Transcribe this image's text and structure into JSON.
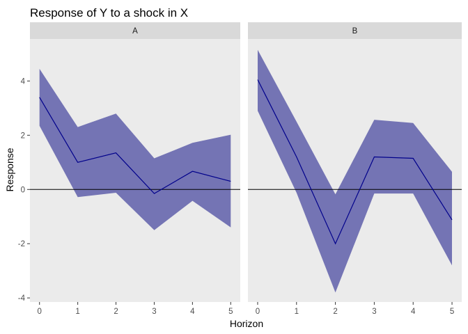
{
  "chart_data": {
    "type": "area",
    "title": "Response of Y to a shock in X",
    "xlabel": "Horizon",
    "ylabel": "Response",
    "x": [
      0,
      1,
      2,
      3,
      4,
      5
    ],
    "xlim": [
      -0.25,
      5.25
    ],
    "ylim": [
      -4.15,
      5.55
    ],
    "xticks": [
      0,
      1,
      2,
      3,
      4,
      5
    ],
    "yticks": [
      -4,
      -2,
      0,
      2,
      4
    ],
    "hline": 0,
    "grid": false,
    "panel_background": "#EBEBEB",
    "strip_background": "#D9D9D9",
    "band_color": "#7474B4",
    "line_color": "#00008B",
    "panels": [
      {
        "name": "A",
        "response": [
          3.4,
          1.0,
          1.35,
          -0.15,
          0.67,
          0.3
        ],
        "lower": [
          2.35,
          -0.28,
          -0.12,
          -1.5,
          -0.42,
          -1.4
        ],
        "upper": [
          4.45,
          2.3,
          2.8,
          1.15,
          1.72,
          2.02
        ]
      },
      {
        "name": "B",
        "response": [
          4.05,
          1.2,
          -2.0,
          1.2,
          1.15,
          -1.12
        ],
        "lower": [
          2.9,
          -0.12,
          -3.8,
          -0.15,
          -0.15,
          -2.8
        ],
        "upper": [
          5.15,
          2.5,
          -0.18,
          2.57,
          2.45,
          0.65
        ]
      }
    ]
  }
}
